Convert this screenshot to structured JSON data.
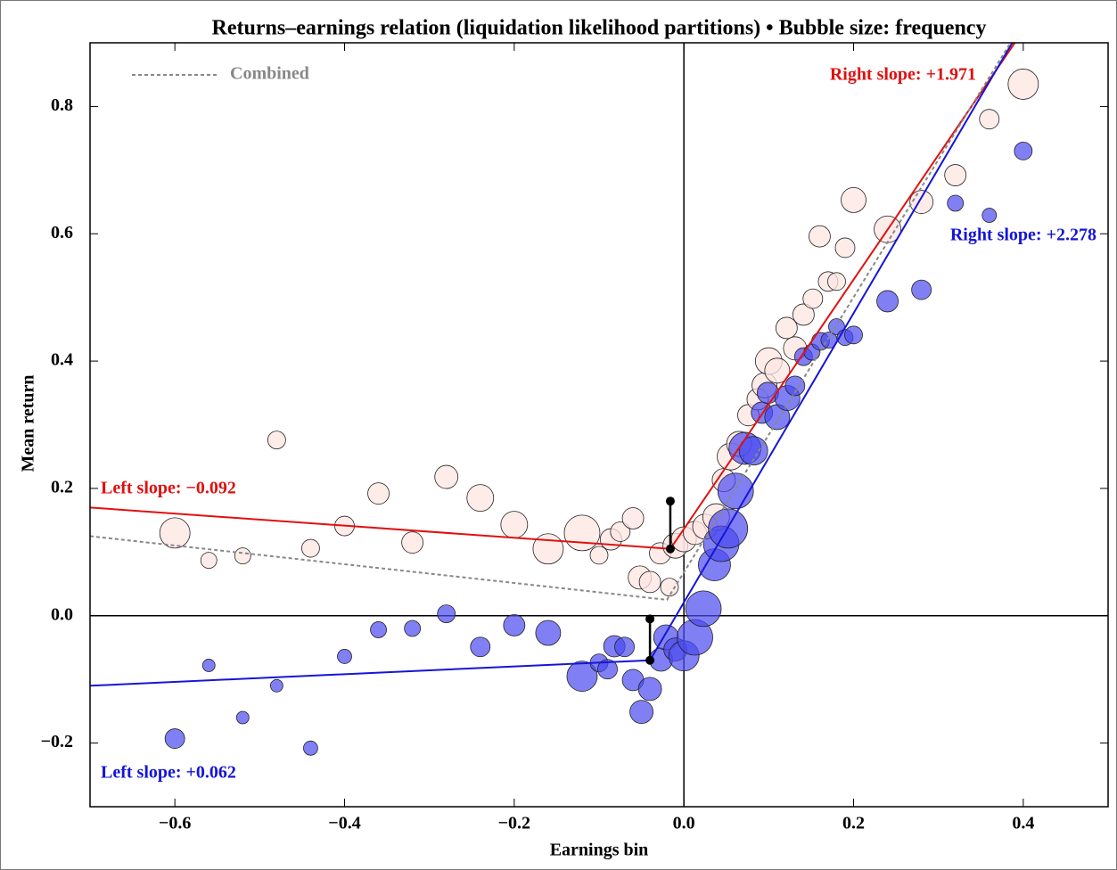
{
  "chart_data": {
    "type": "bubble",
    "title": "Returns–earnings relation (liquidation likelihood partitions)  •  Bubble size: frequency",
    "x_label": "Earnings bin",
    "y_label": "Mean return",
    "xlim": [
      -0.7,
      0.5
    ],
    "ylim": [
      -0.3,
      0.9
    ],
    "xticks": [
      {
        "value": -0.6,
        "label": "−0.6"
      },
      {
        "value": -0.4,
        "label": "−0.4"
      },
      {
        "value": -0.2,
        "label": "−0.2"
      },
      {
        "value": 0,
        "label": "0.0"
      },
      0.2,
      0.4
    ],
    "yticks": [
      {
        "value": -0.2,
        "label": "−0.2"
      },
      {
        "value": 0,
        "label": "0.0"
      },
      0.2,
      0.4,
      0.6,
      0.8
    ],
    "series": [
      {
        "color": "#fde6e2",
        "x": [
          -0.6,
          -0.56,
          -0.52,
          -0.48,
          -0.44,
          -0.4,
          -0.36,
          -0.32,
          -0.28,
          -0.24,
          -0.2,
          -0.16,
          -0.12,
          -0.1,
          -0.086,
          -0.075,
          -0.06,
          -0.052,
          -0.04,
          -0.028,
          -0.017,
          -0.01,
          0,
          0.013,
          0.025,
          0.038,
          0.047,
          0.055,
          0.065,
          0.076,
          0.087,
          0.095,
          0.1,
          0.11,
          0.121,
          0.131,
          0.141,
          0.152,
          0.17,
          0.18,
          0.16,
          0.19,
          0.2,
          0.24,
          0.28,
          0.32,
          0.36,
          0.4
        ],
        "values": [
          0.13,
          0.087,
          0.094,
          0.276,
          0.106,
          0.141,
          0.192,
          0.115,
          0.218,
          0.185,
          0.143,
          0.105,
          0.13,
          0.095,
          0.12,
          0.132,
          0.153,
          0.06,
          0.053,
          0.098,
          0.045,
          0.11,
          0.12,
          0.13,
          0.14,
          0.155,
          0.213,
          0.25,
          0.27,
          0.315,
          0.34,
          0.362,
          0.4,
          0.385,
          0.452,
          0.42,
          0.473,
          0.498,
          0.525,
          0.525,
          0.596,
          0.578,
          0.653,
          0.607,
          0.65,
          0.692,
          0.78,
          0.835
        ],
        "sizes": [
          289,
          81,
          81,
          100,
          100,
          121,
          144,
          144,
          169,
          225,
          225,
          289,
          400,
          100,
          144,
          121,
          144,
          169,
          144,
          144,
          100,
          196,
          196,
          169,
          196,
          225,
          169,
          225,
          196,
          144,
          144,
          196,
          225,
          196,
          144,
          169,
          144,
          121,
          121,
          100,
          144,
          121,
          196,
          225,
          169,
          144,
          121,
          289
        ]
      },
      {
        "color": "#4a4af0",
        "x": [
          -0.6,
          -0.56,
          -0.52,
          -0.48,
          -0.44,
          -0.4,
          -0.36,
          -0.32,
          -0.28,
          -0.24,
          -0.2,
          -0.16,
          -0.12,
          -0.1,
          -0.09,
          -0.082,
          -0.07,
          -0.06,
          -0.05,
          -0.04,
          -0.027,
          -0.021,
          -0.01,
          0,
          0.013,
          0.023,
          0.036,
          0.044,
          0.052,
          0.061,
          0.072,
          0.082,
          0.092,
          0.099,
          0.11,
          0.122,
          0.131,
          0.141,
          0.151,
          0.161,
          0.171,
          0.18,
          0.19,
          0.2,
          0.24,
          0.28,
          0.32,
          0.36,
          0.4
        ],
        "values": [
          -0.193,
          -0.078,
          -0.16,
          -0.11,
          -0.208,
          -0.064,
          -0.022,
          -0.02,
          0.003,
          -0.049,
          -0.015,
          -0.027,
          -0.095,
          -0.074,
          -0.084,
          -0.048,
          -0.049,
          -0.101,
          -0.151,
          -0.115,
          -0.069,
          -0.034,
          -0.053,
          -0.063,
          -0.034,
          0.011,
          0.08,
          0.113,
          0.137,
          0.196,
          0.263,
          0.259,
          0.319,
          0.35,
          0.312,
          0.342,
          0.361,
          0.407,
          0.414,
          0.431,
          0.433,
          0.454,
          0.437,
          0.441,
          0.494,
          0.512,
          0.648,
          0.629,
          0.73
        ],
        "sizes": [
          121,
          49,
          49,
          49,
          64,
          64,
          81,
          81,
          100,
          121,
          144,
          196,
          289,
          100,
          121,
          144,
          121,
          144,
          169,
          169,
          169,
          196,
          169,
          289,
          400,
          400,
          324,
          400,
          484,
          400,
          324,
          256,
          144,
          144,
          196,
          196,
          121,
          100,
          81,
          100,
          81,
          81,
          81,
          100,
          144,
          121,
          81,
          64,
          100
        ]
      }
    ],
    "fits": [
      {
        "color": "#e01010",
        "x": [
          -0.7,
          -0.016,
          0.39
        ],
        "values": [
          0.17,
          0.105,
          0.9
        ]
      },
      {
        "color": "#1515d8",
        "x": [
          -0.7,
          -0.04,
          0.387
        ],
        "values": [
          -0.11,
          -0.07,
          0.9
        ]
      },
      {
        "name": "Combined",
        "color": "#888888",
        "dashed": true,
        "x": [
          -0.7,
          -0.02,
          0.385
        ],
        "values": [
          0.125,
          0.025,
          0.9
        ]
      }
    ],
    "jumps": [
      {
        "x": -0.016,
        "values": [
          0.105,
          0.18
        ]
      },
      {
        "x": -0.04,
        "values": [
          -0.07,
          -0.005
        ]
      }
    ],
    "annotations": [
      {
        "text": "Left slope: −0.092",
        "color": "#e01010"
      },
      {
        "text": "Right slope: +1.971",
        "color": "#e01010"
      },
      {
        "text": "Right slope: +2.278",
        "color": "#1515d8"
      },
      {
        "text": "Left slope: +0.062",
        "color": "#1515d8"
      }
    ]
  }
}
